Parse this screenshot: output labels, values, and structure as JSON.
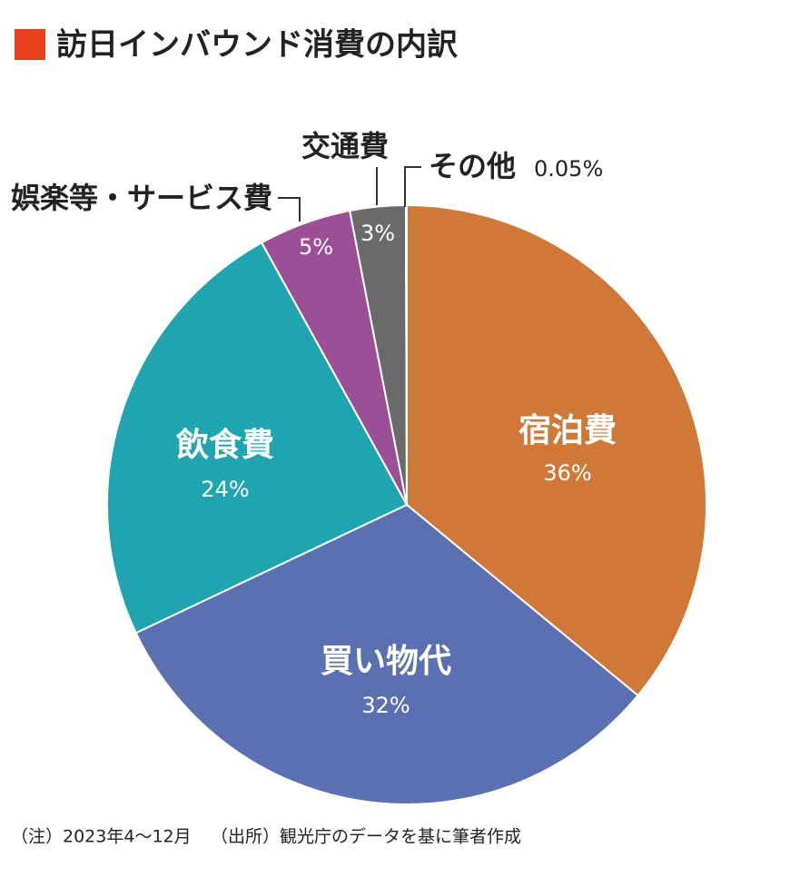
{
  "chart_data": {
    "type": "pie",
    "title": "訪日インバウンド消費の内訳",
    "categories": [
      "宿泊費",
      "買い物代",
      "飲食費",
      "娯楽等・サービス費",
      "交通費",
      "その他"
    ],
    "values": [
      36,
      32,
      24,
      5,
      3,
      0.05
    ],
    "value_labels": [
      "36%",
      "32%",
      "24%",
      "5%",
      "3%",
      "0.05%"
    ],
    "colors": [
      "#d07838",
      "#5b70b0",
      "#1fa5b0",
      "#9b4f96",
      "#6a6a6a",
      "#333333"
    ],
    "note": "（注）2023年4～12月",
    "source": "（出所）観光庁のデータを基に筆者作成"
  }
}
